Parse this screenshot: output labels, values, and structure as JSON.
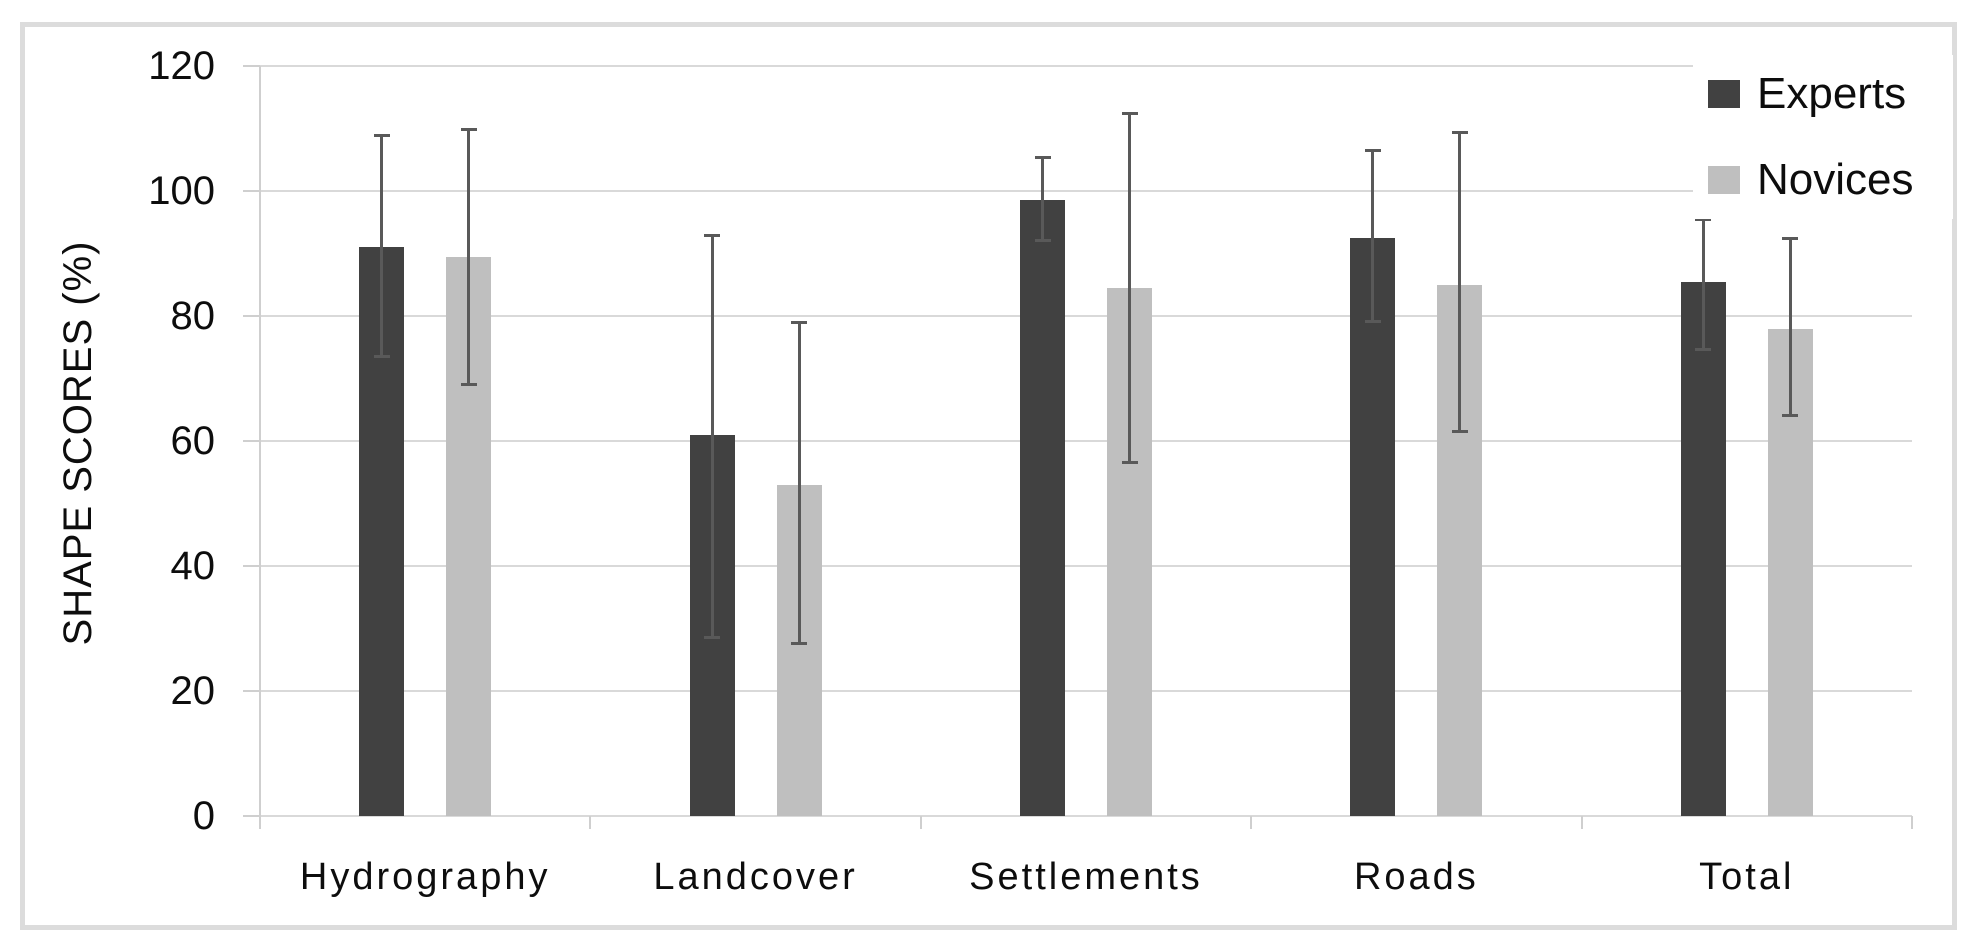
{
  "chart_data": {
    "type": "bar",
    "title": "",
    "xlabel": "",
    "ylabel": "SHAPE SCORES (%)",
    "ylim": [
      0,
      120
    ],
    "ytick_step": 20,
    "yticks": [
      "0",
      "20",
      "40",
      "60",
      "80",
      "100",
      "120"
    ],
    "grid": "horizontal",
    "legend_position": "top-right",
    "categories": [
      "Hydrography",
      "Landcover",
      "Settlements",
      "Roads",
      "Total"
    ],
    "series": [
      {
        "name": "Experts",
        "color": "#414141",
        "values": [
          91,
          61,
          98.5,
          92.5,
          85.5
        ],
        "error_low": [
          73.5,
          28.5,
          92,
          79,
          74.5
        ],
        "error_high": [
          109,
          93,
          105.5,
          106.5,
          95.5
        ]
      },
      {
        "name": "Novices",
        "color": "#bfbfbf",
        "values": [
          89.5,
          53,
          84.5,
          85,
          78
        ],
        "error_low": [
          69,
          27.5,
          56.5,
          61.5,
          64
        ],
        "error_high": [
          110,
          79,
          112.5,
          109.5,
          92.5
        ]
      }
    ],
    "colors": {
      "error_bar": "#595959",
      "gridline": "#d9d9d9",
      "frame_border": "#dcdcdc"
    }
  }
}
